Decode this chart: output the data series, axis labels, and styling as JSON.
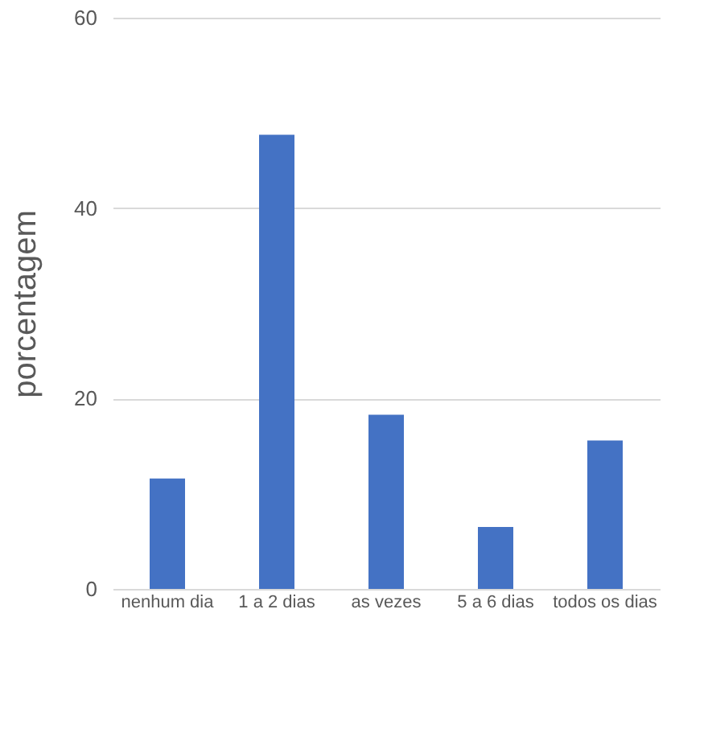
{
  "chart_data": {
    "type": "bar",
    "ylabel": "porcentagem",
    "categories": [
      "nenhum dia",
      "1 a 2 dias",
      "as vezes",
      "5 a 6 dias",
      "todos os dias"
    ],
    "values": [
      11.6,
      47.7,
      18.3,
      6.5,
      15.6
    ],
    "color": "#4472c4",
    "ylim": [
      0,
      60
    ],
    "yticks": [
      0,
      20,
      40,
      60
    ],
    "grid": "y"
  }
}
